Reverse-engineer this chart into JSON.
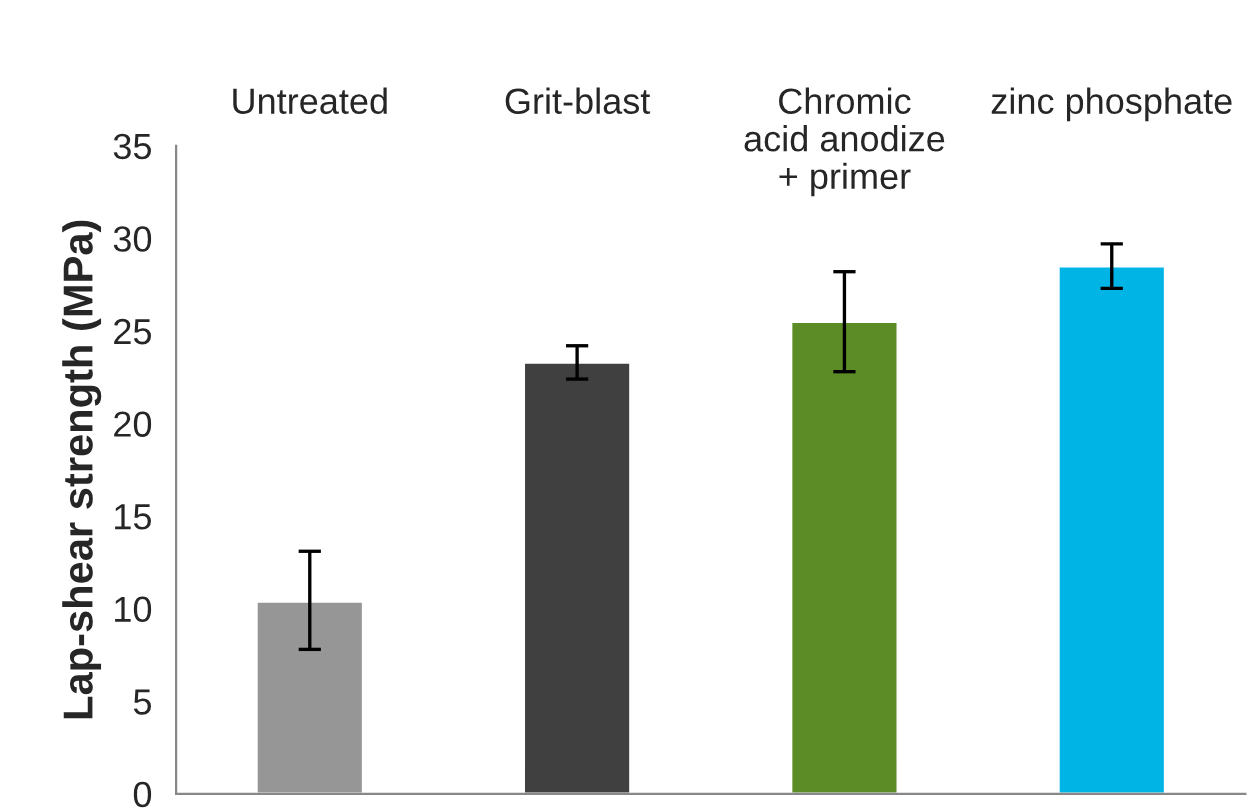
{
  "chart_data": {
    "type": "bar",
    "ylabel": "Lap-shear strength (MPa)",
    "categories": [
      "Untreated",
      "Grit-blast",
      "Chromic\nacid anodize\n+ primer",
      "zinc phosphate"
    ],
    "values": [
      10.4,
      23.3,
      25.5,
      28.5
    ],
    "colors": [
      "#969696",
      "#404040",
      "#5b8c26",
      "#00b4e6"
    ],
    "errors": [
      [
        7.8,
        13.1
      ],
      [
        22.4,
        24.2
      ],
      [
        22.8,
        28.2
      ],
      [
        27.3,
        29.7
      ]
    ],
    "ylim": [
      0,
      35
    ],
    "yticks": [
      0,
      5,
      10,
      15,
      20,
      25,
      30,
      35
    ],
    "grid": false,
    "legend": false
  }
}
